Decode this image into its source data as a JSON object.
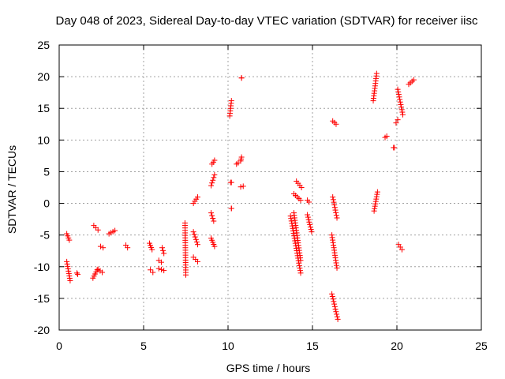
{
  "chart_data": {
    "type": "scatter",
    "title": "Day 048 of 2023, Sidereal Day-to-day VTEC variation (SDTVAR) for receiver iisc",
    "xlabel": "GPS time / hours",
    "ylabel": "SDTVAR / TECUs",
    "xlim": [
      0,
      25
    ],
    "ylim": [
      -20,
      25
    ],
    "xticks": [
      0,
      5,
      10,
      15,
      20,
      25
    ],
    "yticks": [
      -20,
      -15,
      -10,
      -5,
      0,
      5,
      10,
      15,
      20,
      25
    ],
    "grid": true,
    "marker": "+",
    "color": "#ff0000",
    "segments": [
      {
        "x0": 0.45,
        "x1": 0.6,
        "y0": -4.8,
        "y1": -5.8
      },
      {
        "x0": 0.45,
        "x1": 0.65,
        "y0": -9.2,
        "y1": -12.2
      },
      {
        "x0": 1.05,
        "x1": 1.1,
        "y0": -11.0,
        "y1": -11.2
      },
      {
        "x0": 2.0,
        "x1": 2.25,
        "y0": -11.8,
        "y1": -10.5
      },
      {
        "x0": 2.05,
        "x1": 2.3,
        "y0": -3.5,
        "y1": -4.2
      },
      {
        "x0": 2.3,
        "x1": 2.55,
        "y0": -10.4,
        "y1": -10.9
      },
      {
        "x0": 2.45,
        "x1": 2.6,
        "y0": -6.8,
        "y1": -7.0
      },
      {
        "x0": 2.95,
        "x1": 3.3,
        "y0": -4.8,
        "y1": -4.3
      },
      {
        "x0": 3.95,
        "x1": 4.05,
        "y0": -6.6,
        "y1": -7.0
      },
      {
        "x0": 5.35,
        "x1": 5.5,
        "y0": -6.3,
        "y1": -7.3
      },
      {
        "x0": 5.4,
        "x1": 5.55,
        "y0": -10.5,
        "y1": -10.9
      },
      {
        "x0": 5.9,
        "x1": 6.05,
        "y0": -9.0,
        "y1": -9.3
      },
      {
        "x0": 5.9,
        "x1": 6.2,
        "y0": -10.3,
        "y1": -10.6
      },
      {
        "x0": 6.1,
        "x1": 6.2,
        "y0": -7.0,
        "y1": -7.9
      },
      {
        "x0": 7.45,
        "x1": 7.5,
        "y0": -3.1,
        "y1": -11.3
      },
      {
        "x0": 7.95,
        "x1": 8.2,
        "y0": -8.5,
        "y1": -9.2
      },
      {
        "x0": 7.95,
        "x1": 8.2,
        "y0": -4.5,
        "y1": -6.5
      },
      {
        "x0": 7.95,
        "x1": 8.2,
        "y0": 0.0,
        "y1": 1.0
      },
      {
        "x0": 9.0,
        "x1": 9.2,
        "y0": -5.5,
        "y1": -6.8
      },
      {
        "x0": 9.0,
        "x1": 9.15,
        "y0": -1.5,
        "y1": -2.8
      },
      {
        "x0": 9.0,
        "x1": 9.2,
        "y0": 2.8,
        "y1": 4.5
      },
      {
        "x0": 9.05,
        "x1": 9.2,
        "y0": 6.2,
        "y1": 6.8
      },
      {
        "x0": 10.1,
        "x1": 10.2,
        "y0": 13.8,
        "y1": 16.2
      },
      {
        "x0": 10.15,
        "x1": 10.2,
        "y0": 3.3,
        "y1": 3.3
      },
      {
        "x0": 10.2,
        "x1": 10.2,
        "y0": -0.8,
        "y1": -0.8
      },
      {
        "x0": 10.5,
        "x1": 10.6,
        "y0": 6.2,
        "y1": 6.4
      },
      {
        "x0": 10.75,
        "x1": 10.8,
        "y0": 6.7,
        "y1": 7.3
      },
      {
        "x0": 10.8,
        "x1": 10.8,
        "y0": 19.8,
        "y1": 19.8
      },
      {
        "x0": 10.75,
        "x1": 10.9,
        "y0": 2.6,
        "y1": 2.7
      },
      {
        "x0": 13.7,
        "x1": 14.3,
        "y0": -2.0,
        "y1": -11.0
      },
      {
        "x0": 13.9,
        "x1": 14.3,
        "y0": -1.5,
        "y1": -9.0
      },
      {
        "x0": 13.9,
        "x1": 14.3,
        "y0": 1.5,
        "y1": 0.5
      },
      {
        "x0": 14.05,
        "x1": 14.35,
        "y0": 3.5,
        "y1": 2.5
      },
      {
        "x0": 14.7,
        "x1": 14.95,
        "y0": -1.8,
        "y1": -4.5
      },
      {
        "x0": 14.7,
        "x1": 14.8,
        "y0": 0.5,
        "y1": 0.2
      },
      {
        "x0": 16.2,
        "x1": 16.4,
        "y0": 13.0,
        "y1": 12.5
      },
      {
        "x0": 16.2,
        "x1": 16.45,
        "y0": 1.0,
        "y1": -2.3
      },
      {
        "x0": 16.15,
        "x1": 16.45,
        "y0": -5.0,
        "y1": -10.2
      },
      {
        "x0": 16.15,
        "x1": 16.5,
        "y0": -14.3,
        "y1": -18.3
      },
      {
        "x0": 18.6,
        "x1": 18.8,
        "y0": 16.2,
        "y1": 20.5
      },
      {
        "x0": 18.65,
        "x1": 18.85,
        "y0": -1.2,
        "y1": 1.8
      },
      {
        "x0": 19.3,
        "x1": 19.4,
        "y0": 10.4,
        "y1": 10.6
      },
      {
        "x0": 19.8,
        "x1": 19.85,
        "y0": 8.8,
        "y1": 8.8
      },
      {
        "x0": 19.95,
        "x1": 20.05,
        "y0": 12.7,
        "y1": 13.2
      },
      {
        "x0": 20.05,
        "x1": 20.35,
        "y0": 18.0,
        "y1": 14.0
      },
      {
        "x0": 20.1,
        "x1": 20.3,
        "y0": -6.5,
        "y1": -7.3
      },
      {
        "x0": 20.7,
        "x1": 21.0,
        "y0": 18.8,
        "y1": 19.5
      }
    ]
  }
}
